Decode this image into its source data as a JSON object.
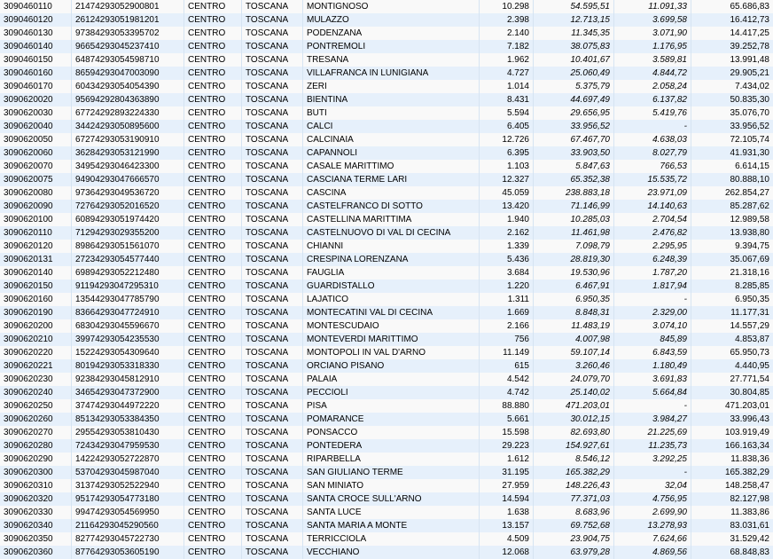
{
  "columns": [
    {
      "key": "c0",
      "align": "left",
      "width": 72,
      "italic": false
    },
    {
      "key": "c1",
      "align": "left",
      "width": 118,
      "italic": false
    },
    {
      "key": "c2",
      "align": "left",
      "width": 56,
      "italic": false
    },
    {
      "key": "c3",
      "align": "left",
      "width": 60,
      "italic": false
    },
    {
      "key": "c4",
      "align": "left",
      "width": 190,
      "italic": false
    },
    {
      "key": "c5",
      "align": "right",
      "width": 52,
      "italic": false
    },
    {
      "key": "c6",
      "align": "right",
      "width": 82,
      "italic": true
    },
    {
      "key": "c7",
      "align": "right",
      "width": 78,
      "italic": true
    },
    {
      "key": "c8",
      "align": "right",
      "width": 84,
      "italic": false
    }
  ],
  "row_colors": {
    "even": "#f9f9f9",
    "odd": "#e6f0fb"
  },
  "borders": {
    "vertical": "#d6e4f2"
  },
  "rows": [
    [
      "3090460110",
      "21474293052900801",
      "CENTRO",
      "TOSCANA",
      "MONTIGNOSO",
      "10.298",
      "54.595,51",
      "11.091,33",
      "65.686,83"
    ],
    [
      "3090460120",
      "26124293051981201",
      "CENTRO",
      "TOSCANA",
      "MULAZZO",
      "2.398",
      "12.713,15",
      "3.699,58",
      "16.412,73"
    ],
    [
      "3090460130",
      "97384293053395702",
      "CENTRO",
      "TOSCANA",
      "PODENZANA",
      "2.140",
      "11.345,35",
      "3.071,90",
      "14.417,25"
    ],
    [
      "3090460140",
      "96654293045237410",
      "CENTRO",
      "TOSCANA",
      "PONTREMOLI",
      "7.182",
      "38.075,83",
      "1.176,95",
      "39.252,78"
    ],
    [
      "3090460150",
      "64874293054598710",
      "CENTRO",
      "TOSCANA",
      "TRESANA",
      "1.962",
      "10.401,67",
      "3.589,81",
      "13.991,48"
    ],
    [
      "3090460160",
      "86594293047003090",
      "CENTRO",
      "TOSCANA",
      "VILLAFRANCA IN LUNIGIANA",
      "4.727",
      "25.060,49",
      "4.844,72",
      "29.905,21"
    ],
    [
      "3090460170",
      "60434293054054390",
      "CENTRO",
      "TOSCANA",
      "ZERI",
      "1.014",
      "5.375,79",
      "2.058,24",
      "7.434,02"
    ],
    [
      "3090620020",
      "95694292804363890",
      "CENTRO",
      "TOSCANA",
      "BIENTINA",
      "8.431",
      "44.697,49",
      "6.137,82",
      "50.835,30"
    ],
    [
      "3090620030",
      "67724292893224330",
      "CENTRO",
      "TOSCANA",
      "BUTI",
      "5.594",
      "29.656,95",
      "5.419,76",
      "35.076,70"
    ],
    [
      "3090620040",
      "34424293050895600",
      "CENTRO",
      "TOSCANA",
      "CALCI",
      "6.405",
      "33.956,52",
      "-",
      "33.956,52"
    ],
    [
      "3090620050",
      "67274293053190910",
      "CENTRO",
      "TOSCANA",
      "CALCINAIA",
      "12.726",
      "67.467,70",
      "4.638,03",
      "72.105,74"
    ],
    [
      "3090620060",
      "36284293053121990",
      "CENTRO",
      "TOSCANA",
      "CAPANNOLI",
      "6.395",
      "33.903,50",
      "8.027,79",
      "41.931,30"
    ],
    [
      "3090620070",
      "34954293046423300",
      "CENTRO",
      "TOSCANA",
      "CASALE MARITTIMO",
      "1.103",
      "5.847,63",
      "766,53",
      "6.614,15"
    ],
    [
      "3090620075",
      "94904293047666570",
      "CENTRO",
      "TOSCANA",
      "CASCIANA TERME LARI",
      "12.327",
      "65.352,38",
      "15.535,72",
      "80.888,10"
    ],
    [
      "3090620080",
      "97364293049536720",
      "CENTRO",
      "TOSCANA",
      "CASCINA",
      "45.059",
      "238.883,18",
      "23.971,09",
      "262.854,27"
    ],
    [
      "3090620090",
      "72764293052016520",
      "CENTRO",
      "TOSCANA",
      "CASTELFRANCO DI SOTTO",
      "13.420",
      "71.146,99",
      "14.140,63",
      "85.287,62"
    ],
    [
      "3090620100",
      "60894293051974420",
      "CENTRO",
      "TOSCANA",
      "CASTELLINA MARITTIMA",
      "1.940",
      "10.285,03",
      "2.704,54",
      "12.989,58"
    ],
    [
      "3090620110",
      "71294293029355200",
      "CENTRO",
      "TOSCANA",
      "CASTELNUOVO DI VAL DI CECINA",
      "2.162",
      "11.461,98",
      "2.476,82",
      "13.938,80"
    ],
    [
      "3090620120",
      "89864293051561070",
      "CENTRO",
      "TOSCANA",
      "CHIANNI",
      "1.339",
      "7.098,79",
      "2.295,95",
      "9.394,75"
    ],
    [
      "3090620131",
      "27234293054577440",
      "CENTRO",
      "TOSCANA",
      "CRESPINA LORENZANA",
      "5.436",
      "28.819,30",
      "6.248,39",
      "35.067,69"
    ],
    [
      "3090620140",
      "69894293052212480",
      "CENTRO",
      "TOSCANA",
      "FAUGLIA",
      "3.684",
      "19.530,96",
      "1.787,20",
      "21.318,16"
    ],
    [
      "3090620150",
      "91194293047295310",
      "CENTRO",
      "TOSCANA",
      "GUARDISTALLO",
      "1.220",
      "6.467,91",
      "1.817,94",
      "8.285,85"
    ],
    [
      "3090620160",
      "13544293047785790",
      "CENTRO",
      "TOSCANA",
      "LAJATICO",
      "1.311",
      "6.950,35",
      "-",
      "6.950,35"
    ],
    [
      "3090620190",
      "83664293047724910",
      "CENTRO",
      "TOSCANA",
      "MONTECATINI VAL DI CECINA",
      "1.669",
      "8.848,31",
      "2.329,00",
      "11.177,31"
    ],
    [
      "3090620200",
      "68304293045596670",
      "CENTRO",
      "TOSCANA",
      "MONTESCUDAIO",
      "2.166",
      "11.483,19",
      "3.074,10",
      "14.557,29"
    ],
    [
      "3090620210",
      "39974293054235530",
      "CENTRO",
      "TOSCANA",
      "MONTEVERDI MARITTIMO",
      "756",
      "4.007,98",
      "845,89",
      "4.853,87"
    ],
    [
      "3090620220",
      "15224293054309640",
      "CENTRO",
      "TOSCANA",
      "MONTOPOLI IN VAL D'ARNO",
      "11.149",
      "59.107,14",
      "6.843,59",
      "65.950,73"
    ],
    [
      "3090620221",
      "80194293053318330",
      "CENTRO",
      "TOSCANA",
      "ORCIANO PISANO",
      "615",
      "3.260,46",
      "1.180,49",
      "4.440,95"
    ],
    [
      "3090620230",
      "92384293045812910",
      "CENTRO",
      "TOSCANA",
      "PALAIA",
      "4.542",
      "24.079,70",
      "3.691,83",
      "27.771,54"
    ],
    [
      "3090620240",
      "34654293047372900",
      "CENTRO",
      "TOSCANA",
      "PECCIOLI",
      "4.742",
      "25.140,02",
      "5.664,84",
      "30.804,85"
    ],
    [
      "3090620250",
      "37474293044972220",
      "CENTRO",
      "TOSCANA",
      "PISA",
      "88.880",
      "471.203,01",
      "-",
      "471.203,01"
    ],
    [
      "3090620260",
      "85134293053384350",
      "CENTRO",
      "TOSCANA",
      "POMARANCE",
      "5.661",
      "30.012,15",
      "3.984,27",
      "33.996,43"
    ],
    [
      "3090620270",
      "29554293053810430",
      "CENTRO",
      "TOSCANA",
      "PONSACCO",
      "15.598",
      "82.693,80",
      "21.225,69",
      "103.919,49"
    ],
    [
      "3090620280",
      "72434293047959530",
      "CENTRO",
      "TOSCANA",
      "PONTEDERA",
      "29.223",
      "154.927,61",
      "11.235,73",
      "166.163,34"
    ],
    [
      "3090620290",
      "14224293052722870",
      "CENTRO",
      "TOSCANA",
      "RIPARBELLA",
      "1.612",
      "8.546,12",
      "3.292,25",
      "11.838,36"
    ],
    [
      "3090620300",
      "53704293045987040",
      "CENTRO",
      "TOSCANA",
      "SAN GIULIANO TERME",
      "31.195",
      "165.382,29",
      "-",
      "165.382,29"
    ],
    [
      "3090620310",
      "31374293052522940",
      "CENTRO",
      "TOSCANA",
      "SAN MINIATO",
      "27.959",
      "148.226,43",
      "32,04",
      "148.258,47"
    ],
    [
      "3090620320",
      "95174293054773180",
      "CENTRO",
      "TOSCANA",
      "SANTA CROCE SULL'ARNO",
      "14.594",
      "77.371,03",
      "4.756,95",
      "82.127,98"
    ],
    [
      "3090620330",
      "99474293054569950",
      "CENTRO",
      "TOSCANA",
      "SANTA LUCE",
      "1.638",
      "8.683,96",
      "2.699,90",
      "11.383,86"
    ],
    [
      "3090620340",
      "21164293045290560",
      "CENTRO",
      "TOSCANA",
      "SANTA MARIA A MONTE",
      "13.157",
      "69.752,68",
      "13.278,93",
      "83.031,61"
    ],
    [
      "3090620350",
      "82774293045722730",
      "CENTRO",
      "TOSCANA",
      "TERRICCIOLA",
      "4.509",
      "23.904,75",
      "7.624,66",
      "31.529,42"
    ],
    [
      "3090620360",
      "87764293053605190",
      "CENTRO",
      "TOSCANA",
      "VECCHIANO",
      "12.068",
      "63.979,28",
      "4.869,56",
      "68.848,83"
    ]
  ]
}
